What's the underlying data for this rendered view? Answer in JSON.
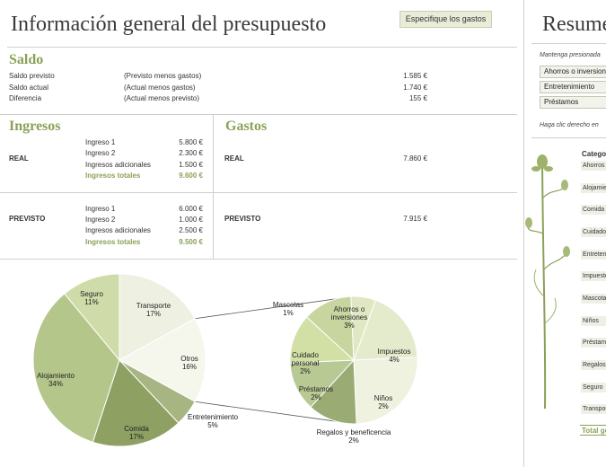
{
  "title": "Información general del presupuesto",
  "specify_button": "Especifique los gastos",
  "saldo": {
    "heading": "Saldo",
    "rows": [
      {
        "label": "Saldo previsto",
        "desc": "(Previsto menos gastos)",
        "value": "1.585 €"
      },
      {
        "label": "Saldo actual",
        "desc": "(Actual menos gastos)",
        "value": "1.740 €"
      },
      {
        "label": "Diferencia",
        "desc": "(Actual menos previsto)",
        "value": "155 €"
      }
    ]
  },
  "ingresos": {
    "heading": "Ingresos",
    "real": {
      "label": "REAL",
      "items": [
        {
          "name": "Ingreso 1",
          "value": "5.800 €"
        },
        {
          "name": "Ingreso 2",
          "value": "2.300 €"
        },
        {
          "name": "Ingresos adicionales",
          "value": "1.500 €"
        }
      ],
      "total_label": "Ingresos totales",
      "total_value": "9.600 €"
    },
    "previsto": {
      "label": "PREVISTO",
      "items": [
        {
          "name": "Ingreso 1",
          "value": "6.000 €"
        },
        {
          "name": "Ingreso 2",
          "value": "1.000 €"
        },
        {
          "name": "Ingresos adicionales",
          "value": "2.500 €"
        }
      ],
      "total_label": "Ingresos totales",
      "total_value": "9.500 €"
    }
  },
  "gastos": {
    "heading": "Gastos",
    "real": {
      "label": "REAL",
      "value": "7.860 €"
    },
    "previsto": {
      "label": "PREVISTO",
      "value": "7.915 €"
    }
  },
  "chart_data": {
    "type": "pie",
    "main": {
      "slices": [
        {
          "name": "Transporte",
          "pct": 17,
          "label": "17%",
          "color": "#eef1e1"
        },
        {
          "name": "Otros",
          "pct": 16,
          "label": "16%",
          "color": "#f5f6ec"
        },
        {
          "name": "Entretenimiento",
          "pct": 5,
          "label": "5%",
          "color": "#a7b582"
        },
        {
          "name": "Comida",
          "pct": 17,
          "label": "17%",
          "color": "#8fa063"
        },
        {
          "name": "Alojamiento",
          "pct": 34,
          "label": "34%",
          "color": "#b5c68a"
        },
        {
          "name": "Seguro",
          "pct": 11,
          "label": "11%",
          "color": "#cfdcaa"
        }
      ]
    },
    "secondary": {
      "slices": [
        {
          "name": "Ahorros o inversiones",
          "pct": 3,
          "label": "3%",
          "color": "#e4ebcc"
        },
        {
          "name": "Impuestos",
          "pct": 4,
          "label": "4%",
          "color": "#eef2df"
        },
        {
          "name": "Niños",
          "pct": 2,
          "label": "2%",
          "color": "#9aab73"
        },
        {
          "name": "Regalos y beneficencia",
          "pct": 2,
          "label": "2%",
          "color": "#b9c993"
        },
        {
          "name": "Préstamos",
          "pct": 2,
          "label": "2%",
          "color": "#d2e0a6"
        },
        {
          "name": "Cuidado personal",
          "pct": 2,
          "label": "2%",
          "color": "#c8d59f"
        },
        {
          "name": "Mascotas",
          "pct": 1,
          "label": "1%",
          "color": "#dfe7c3"
        }
      ]
    }
  },
  "right_panel": {
    "title": "Resumen",
    "hint": "Mantenga presionada",
    "buttons": [
      "Ahorros o inversiones",
      "Entretenimiento",
      "Préstamos"
    ],
    "hint2": "Haga clic derecho en",
    "categories_title": "Categoría",
    "categories": [
      "Ahorros",
      "Alojamiento",
      "Comida",
      "Cuidado",
      "Entretenimiento",
      "Impuestos",
      "Mascotas",
      "Niños",
      "Préstamos",
      "Regalos",
      "Seguro",
      "Transporte"
    ],
    "total_label": "Total general"
  }
}
